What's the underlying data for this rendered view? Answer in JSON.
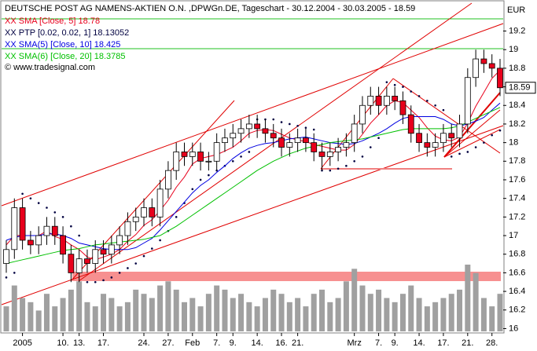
{
  "chart_data": {
    "type": "candlestick",
    "title": "DEUTSCHE POST AG NAMENS-AKTIEN O.N. ,DPWGn.DE, Tageschart - 30.12.2004 - 30.03.2005 - 18.59",
    "copyright": "© www.tradesignal.com",
    "y_unit": "EUR",
    "last_label": 18.59,
    "ylim": [
      15.97,
      19.5
    ],
    "yticks": [
      16,
      16.2,
      16.4,
      16.6,
      16.8,
      17,
      17.2,
      17.4,
      17.6,
      17.8,
      18,
      18.2,
      18.4,
      18.6,
      18.8,
      19,
      19.2
    ],
    "categories": [
      null,
      null,
      "2005",
      null,
      null,
      null,
      null,
      "10.",
      null,
      "13.",
      null,
      null,
      "17.",
      null,
      null,
      null,
      null,
      "24.",
      null,
      null,
      "27.",
      null,
      null,
      "Feb",
      null,
      null,
      "7.",
      null,
      "9.",
      null,
      null,
      "14.",
      null,
      null,
      "16.",
      null,
      "21.",
      null,
      null,
      null,
      null,
      null,
      null,
      "Mrz",
      null,
      null,
      "7.",
      null,
      "9.",
      null,
      null,
      "14.",
      null,
      null,
      "17.",
      null,
      null,
      "21.",
      null,
      null,
      "28.",
      null
    ],
    "open": [
      16.7,
      16.85,
      17.3,
      16.95,
      16.9,
      17.0,
      17.1,
      17.0,
      16.8,
      16.6,
      16.75,
      16.7,
      16.85,
      16.8,
      16.9,
      17.0,
      17.15,
      17.2,
      17.3,
      17.2,
      17.5,
      17.7,
      17.9,
      17.85,
      17.9,
      17.8,
      17.8,
      18.0,
      18.05,
      18.1,
      18.15,
      18.2,
      18.15,
      18.1,
      18.05,
      17.95,
      18.0,
      18.05,
      18.0,
      17.9,
      17.85,
      17.9,
      17.95,
      18.0,
      18.2,
      18.4,
      18.5,
      18.4,
      18.5,
      18.45,
      18.3,
      18.1,
      18.0,
      17.95,
      18.0,
      18.1,
      18.05,
      18.2,
      18.7,
      18.9,
      18.85,
      18.8
    ],
    "high": [
      16.95,
      17.4,
      17.4,
      17.05,
      17.1,
      17.2,
      17.2,
      17.1,
      16.9,
      16.85,
      16.85,
      16.95,
      16.95,
      17.0,
      17.1,
      17.25,
      17.3,
      17.4,
      17.4,
      17.6,
      17.8,
      18.0,
      18.0,
      18.0,
      18.0,
      17.9,
      18.1,
      18.15,
      18.2,
      18.25,
      18.3,
      18.3,
      18.25,
      18.2,
      18.15,
      18.1,
      18.15,
      18.15,
      18.1,
      18.0,
      18.0,
      18.05,
      18.1,
      18.3,
      18.5,
      18.6,
      18.6,
      18.6,
      18.6,
      18.55,
      18.4,
      18.2,
      18.1,
      18.1,
      18.2,
      18.2,
      18.3,
      18.8,
      19.0,
      19.0,
      18.95,
      18.9
    ],
    "low": [
      16.6,
      16.75,
      16.85,
      16.8,
      16.8,
      16.9,
      16.9,
      16.7,
      16.5,
      16.5,
      16.6,
      16.6,
      16.7,
      16.7,
      16.8,
      16.9,
      17.05,
      17.1,
      17.1,
      17.1,
      17.4,
      17.6,
      17.75,
      17.75,
      17.7,
      17.7,
      17.7,
      17.9,
      17.95,
      18.0,
      18.05,
      18.05,
      18.0,
      17.95,
      17.85,
      17.85,
      17.9,
      17.9,
      17.8,
      17.7,
      17.75,
      17.8,
      17.85,
      17.9,
      18.1,
      18.3,
      18.3,
      18.3,
      18.35,
      18.2,
      18.0,
      17.9,
      17.85,
      17.85,
      17.9,
      17.95,
      17.95,
      18.1,
      18.6,
      18.75,
      18.7,
      18.5
    ],
    "close": [
      16.85,
      17.3,
      16.95,
      16.9,
      17.0,
      17.1,
      17.0,
      16.8,
      16.6,
      16.75,
      16.7,
      16.85,
      16.8,
      16.9,
      17.0,
      17.15,
      17.2,
      17.3,
      17.2,
      17.5,
      17.7,
      17.9,
      17.85,
      17.9,
      17.8,
      17.8,
      18.0,
      18.05,
      18.1,
      18.15,
      18.2,
      18.15,
      18.1,
      18.05,
      17.95,
      18.0,
      18.05,
      18.0,
      17.9,
      17.85,
      17.9,
      17.95,
      18.0,
      18.2,
      18.4,
      18.5,
      18.4,
      18.5,
      18.45,
      18.3,
      18.1,
      18.0,
      17.95,
      18.0,
      18.1,
      18.05,
      18.2,
      18.7,
      18.9,
      18.85,
      18.8,
      18.59
    ],
    "up_color": "#ffffff",
    "down_color": "#e8001c",
    "volume": [
      30,
      55,
      40,
      35,
      25,
      45,
      30,
      40,
      50,
      60,
      35,
      30,
      45,
      40,
      30,
      35,
      50,
      45,
      40,
      55,
      60,
      50,
      35,
      40,
      30,
      45,
      55,
      50,
      40,
      45,
      35,
      30,
      40,
      50,
      45,
      35,
      40,
      30,
      45,
      50,
      35,
      40,
      60,
      75,
      55,
      45,
      50,
      40,
      35,
      45,
      55,
      40,
      30,
      35,
      40,
      45,
      50,
      80,
      70,
      40,
      30,
      45
    ],
    "volume_color": "#a0a0a0",
    "series": [
      {
        "name": "XX SMA [Close, 5] 18.78",
        "color": "#e8001c",
        "style": "line",
        "values": [
          16.9,
          17.0,
          17.0,
          17.0,
          17.0,
          17.05,
          16.99,
          16.96,
          16.9,
          16.85,
          16.77,
          16.74,
          16.77,
          16.8,
          16.85,
          16.94,
          17.01,
          17.11,
          17.17,
          17.27,
          17.38,
          17.52,
          17.63,
          17.77,
          17.83,
          17.85,
          17.87,
          17.91,
          17.95,
          18.02,
          18.1,
          18.13,
          18.14,
          18.13,
          18.09,
          18.05,
          18.03,
          18.01,
          17.98,
          17.96,
          17.94,
          17.92,
          17.92,
          17.98,
          18.09,
          18.21,
          18.3,
          18.4,
          18.45,
          18.43,
          18.35,
          18.27,
          18.16,
          18.07,
          18.03,
          18.02,
          18.06,
          18.21,
          18.39,
          18.54,
          18.69,
          18.78
        ]
      },
      {
        "name": "XX PTP [0.02, 0.02, 1] 18.13052",
        "color": "#000040",
        "style": "dots",
        "values": [
          16.55,
          16.6,
          17.45,
          17.4,
          17.35,
          17.3,
          17.25,
          17.2,
          17.1,
          17.0,
          16.5,
          16.5,
          16.52,
          16.55,
          16.6,
          16.65,
          16.7,
          16.78,
          16.86,
          16.95,
          17.05,
          17.2,
          17.35,
          17.5,
          17.6,
          17.65,
          17.7,
          17.75,
          17.8,
          17.85,
          17.9,
          18.25,
          18.25,
          18.25,
          18.22,
          18.2,
          18.18,
          18.16,
          18.14,
          17.7,
          17.7,
          17.72,
          17.75,
          17.8,
          17.85,
          17.95,
          18.05,
          18.65,
          18.62,
          18.6,
          18.55,
          18.5,
          18.45,
          18.4,
          18.35,
          17.85,
          17.88,
          17.9,
          17.95,
          18.0,
          18.08,
          18.13052
        ]
      },
      {
        "name": "XX SMA(5) [Close, 10] 18.425",
        "color": "#0000e0",
        "style": "line",
        "values": [
          16.95,
          16.98,
          17.0,
          17.0,
          17.0,
          17.02,
          17.02,
          17.0,
          16.97,
          16.92,
          16.9,
          16.88,
          16.86,
          16.85,
          16.85,
          16.85,
          16.87,
          16.92,
          16.97,
          17.06,
          17.16,
          17.26,
          17.36,
          17.46,
          17.54,
          17.6,
          17.68,
          17.75,
          17.83,
          17.89,
          17.94,
          17.97,
          17.99,
          18.0,
          18.02,
          18.04,
          18.05,
          18.06,
          18.04,
          18.02,
          18.0,
          17.99,
          17.98,
          17.99,
          18.02,
          18.06,
          18.1,
          18.15,
          18.21,
          18.26,
          18.28,
          18.28,
          18.28,
          18.28,
          18.25,
          18.2,
          18.18,
          18.2,
          18.23,
          18.27,
          18.35,
          18.425
        ]
      },
      {
        "name": "XX SMA(6) [Close, 20] 18.3785",
        "color": "#00c000",
        "style": "line",
        "values": [
          16.7,
          16.72,
          16.74,
          16.76,
          16.78,
          16.8,
          16.82,
          16.84,
          16.85,
          16.86,
          16.88,
          16.9,
          16.91,
          16.92,
          16.93,
          16.94,
          16.95,
          16.96,
          16.98,
          17.0,
          17.05,
          17.1,
          17.16,
          17.22,
          17.28,
          17.34,
          17.4,
          17.46,
          17.52,
          17.58,
          17.64,
          17.7,
          17.75,
          17.8,
          17.84,
          17.88,
          17.91,
          17.94,
          17.96,
          17.98,
          18.0,
          18.01,
          18.02,
          18.03,
          18.04,
          18.06,
          18.08,
          18.1,
          18.12,
          18.14,
          18.15,
          18.15,
          18.15,
          18.15,
          18.15,
          18.16,
          18.18,
          18.22,
          18.26,
          18.3,
          18.34,
          18.3785
        ]
      }
    ]
  }
}
